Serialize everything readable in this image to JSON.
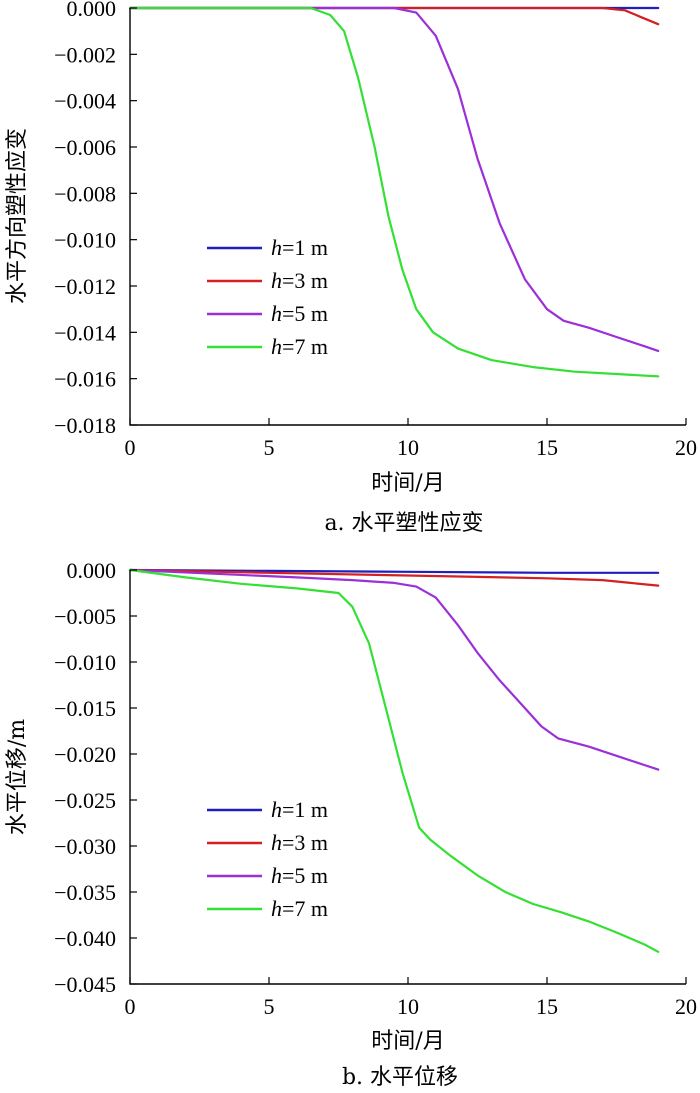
{
  "chart_data": [
    {
      "type": "line",
      "id": "a",
      "caption": "a. 水平塑性应变",
      "xlabel": "时间/月",
      "ylabel": "水平方向塑性应变",
      "xlim": [
        0,
        20
      ],
      "ylim": [
        -0.018,
        0.0
      ],
      "xticks": [
        0,
        5,
        10,
        15,
        20
      ],
      "xtick_labels": [
        "0",
        "5",
        "10",
        "15",
        "20"
      ],
      "yticks": [
        0.0,
        -0.002,
        -0.004,
        -0.006,
        -0.008,
        -0.01,
        -0.012,
        -0.014,
        -0.016,
        -0.018
      ],
      "ytick_labels": [
        "0.000",
        "−0.002",
        "−0.004",
        "−0.006",
        "−0.008",
        "−0.010",
        "−0.012",
        "−0.014",
        "−0.016",
        "−0.018"
      ],
      "legend_position": "center-left",
      "series": [
        {
          "name": "h=1 m",
          "h_label": "h",
          "rest": "=1 m",
          "color": "#1f1fbf",
          "x": [
            0,
            5,
            10,
            15,
            19
          ],
          "y": [
            0,
            0,
            0,
            0,
            0
          ]
        },
        {
          "name": "h=3 m",
          "h_label": "h",
          "rest": "=3 m",
          "color": "#d42020",
          "x": [
            0,
            5,
            10,
            15,
            17,
            17.8,
            18.4,
            19
          ],
          "y": [
            0,
            0,
            0,
            0,
            0,
            -0.0001,
            -0.0004,
            -0.0007
          ]
        },
        {
          "name": "h=5 m",
          "h_label": "h",
          "rest": "=5 m",
          "color": "#9b30d9",
          "x": [
            0,
            5,
            9.5,
            10.3,
            11,
            11.8,
            12.5,
            13.3,
            14.2,
            15,
            15.6,
            16.5,
            17.5,
            18.5,
            19
          ],
          "y": [
            0,
            0,
            0,
            -0.0002,
            -0.0012,
            -0.0035,
            -0.0065,
            -0.0093,
            -0.0117,
            -0.013,
            -0.0135,
            -0.0138,
            -0.0142,
            -0.0146,
            -0.0148
          ]
        },
        {
          "name": "h=7 m",
          "h_label": "h",
          "rest": "=7 m",
          "color": "#33e033",
          "x": [
            0,
            3,
            6.5,
            7.2,
            7.7,
            8.2,
            8.8,
            9.3,
            9.8,
            10.3,
            10.9,
            11.8,
            13,
            14.5,
            16,
            17.5,
            19
          ],
          "y": [
            0,
            0,
            0,
            -0.0003,
            -0.001,
            -0.003,
            -0.006,
            -0.009,
            -0.0113,
            -0.013,
            -0.014,
            -0.0147,
            -0.0152,
            -0.0155,
            -0.0157,
            -0.0158,
            -0.0159
          ]
        }
      ]
    },
    {
      "type": "line",
      "id": "b",
      "caption": "b. 水平位移",
      "xlabel": "时间/月",
      "ylabel": "水平位移/m",
      "xlim": [
        0,
        20
      ],
      "ylim": [
        -0.045,
        0.0
      ],
      "xticks": [
        0,
        5,
        10,
        15,
        20
      ],
      "xtick_labels": [
        "0",
        "5",
        "10",
        "15",
        "20"
      ],
      "yticks": [
        0.0,
        -0.005,
        -0.01,
        -0.015,
        -0.02,
        -0.025,
        -0.03,
        -0.035,
        -0.04,
        -0.045
      ],
      "ytick_labels": [
        "0.000",
        "−0.005",
        "−0.010",
        "−0.015",
        "−0.020",
        "−0.025",
        "−0.030",
        "−0.035",
        "−0.040",
        "−0.045"
      ],
      "legend_position": "center-left",
      "series": [
        {
          "name": "h=1 m",
          "h_label": "h",
          "rest": "=1 m",
          "color": "#1f1fbf",
          "x": [
            0,
            5,
            10,
            15,
            19
          ],
          "y": [
            0,
            -0.0001,
            -0.0002,
            -0.0003,
            -0.0003
          ]
        },
        {
          "name": "h=3 m",
          "h_label": "h",
          "rest": "=3 m",
          "color": "#d42020",
          "x": [
            0,
            5,
            10,
            15,
            17,
            18,
            19
          ],
          "y": [
            0,
            -0.0003,
            -0.0006,
            -0.0009,
            -0.0011,
            -0.0014,
            -0.0017
          ]
        },
        {
          "name": "h=5 m",
          "h_label": "h",
          "rest": "=5 m",
          "color": "#9b30d9",
          "x": [
            0,
            3,
            6,
            8,
            9.5,
            10.3,
            11,
            11.8,
            12.5,
            13.3,
            14.2,
            14.8,
            15.4,
            16.5,
            17.5,
            18.5,
            19
          ],
          "y": [
            0,
            -0.0004,
            -0.0008,
            -0.0011,
            -0.0014,
            -0.0018,
            -0.003,
            -0.006,
            -0.009,
            -0.012,
            -0.015,
            -0.017,
            -0.0183,
            -0.0192,
            -0.0202,
            -0.0212,
            -0.0217
          ]
        },
        {
          "name": "h=7 m",
          "h_label": "h",
          "rest": "=7 m",
          "color": "#33e033",
          "x": [
            0,
            2,
            4,
            6,
            7.5,
            8,
            8.6,
            9.2,
            9.8,
            10.4,
            10.8,
            11.5,
            12.5,
            13.5,
            14.5,
            15.5,
            16.5,
            17.5,
            18.5,
            19
          ],
          "y": [
            0,
            -0.0008,
            -0.0015,
            -0.002,
            -0.0025,
            -0.004,
            -0.008,
            -0.015,
            -0.022,
            -0.028,
            -0.0293,
            -0.031,
            -0.0332,
            -0.035,
            -0.0363,
            -0.0372,
            -0.0382,
            -0.0394,
            -0.0407,
            -0.0415
          ]
        }
      ]
    }
  ]
}
